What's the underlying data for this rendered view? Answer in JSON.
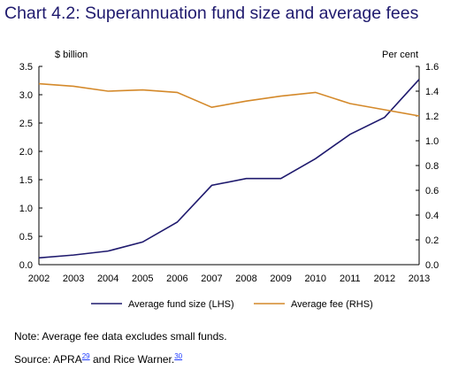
{
  "title": "Chart 4.2: Superannuation fund size and average fees",
  "note": "Note: Average fee data excludes small funds.",
  "source": {
    "prefix": "Source: APRA",
    "ref1": "29",
    "middle": " and Rice Warner.",
    "ref2": "30"
  },
  "colors": {
    "fund_size": "#1f1a6e",
    "average_fee": "#d4892a",
    "title": "#1f1a6e"
  },
  "chart_data": {
    "type": "line",
    "x": [
      "2002",
      "2003",
      "2004",
      "2005",
      "2006",
      "2007",
      "2008",
      "2009",
      "2010",
      "2011",
      "2012",
      "2013"
    ],
    "left_axis": {
      "label": "$ billion",
      "ylim": [
        0,
        3.5
      ],
      "ticks": [
        "0.0",
        "0.5",
        "1.0",
        "1.5",
        "2.0",
        "2.5",
        "3.0",
        "3.5"
      ]
    },
    "right_axis": {
      "label": "Per cent",
      "ylim": [
        0,
        1.6
      ],
      "ticks": [
        "0.0",
        "0.2",
        "0.4",
        "0.6",
        "0.8",
        "1.0",
        "1.2",
        "1.4",
        "1.6"
      ]
    },
    "series": [
      {
        "name": "Average fund size (LHS)",
        "axis": "left",
        "values": [
          0.12,
          0.17,
          0.24,
          0.4,
          0.75,
          1.4,
          1.52,
          1.52,
          1.87,
          2.3,
          2.6,
          3.27
        ]
      },
      {
        "name": "Average fee (RHS)",
        "axis": "right",
        "values": [
          1.46,
          1.44,
          1.4,
          1.41,
          1.39,
          1.27,
          1.32,
          1.36,
          1.39,
          1.3,
          1.25,
          1.2
        ]
      }
    ],
    "grid": false,
    "legend_placement": "bottom"
  }
}
